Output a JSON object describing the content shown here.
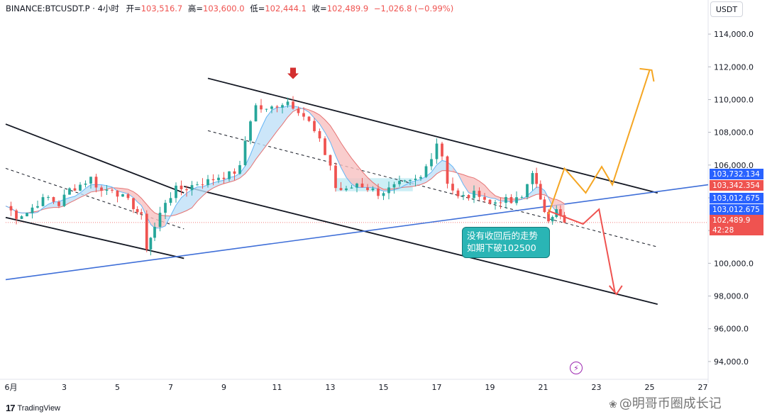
{
  "header": {
    "symbol": "BINANCE:BTCUSDT.P · 4小时",
    "open_label": "开=",
    "open": "103,516.7",
    "high_label": "高=",
    "high": "103,600.0",
    "low_label": "低=",
    "low": "102,444.1",
    "close_label": "收=",
    "close": "102,489.9",
    "change": "−1,026.8 (−0.99%)"
  },
  "currency": "USDT",
  "branding": {
    "logo": "TradingView",
    "watermark": "明哥币圈成长记"
  },
  "annotation": {
    "line1": "没有收回后的走势",
    "line2": "如期下破102500"
  },
  "price_tags": [
    {
      "label": "103,732.134",
      "color": "#2962ff"
    },
    {
      "label": "103,342.354",
      "color": "#ef5350"
    },
    {
      "label": "103,012.675",
      "color": "#2962ff"
    },
    {
      "label": "103,012.675",
      "color": "#2962ff"
    },
    {
      "label": "102,489.9",
      "color": "#ef5350"
    },
    {
      "label": "42:28",
      "color": "#ef5350"
    }
  ],
  "chart_data": {
    "type": "candlestick",
    "title": "BINANCE:BTCUSDT.P · 4小时",
    "y_axis": {
      "unit": "USDT",
      "ticks": [
        94000,
        96000,
        98000,
        100000,
        102000,
        104000,
        106000,
        108000,
        110000,
        112000,
        114000
      ],
      "tick_labels": [
        "94,000.0",
        "96,000.0",
        "98,000.0",
        "100,000.0",
        "102,000.0",
        "104,000.0",
        "106,000.0",
        "108,000.0",
        "110,000.0",
        "112,000.0",
        "114,000.0"
      ],
      "range": [
        93000,
        115000
      ]
    },
    "x_axis": {
      "tick_labels": [
        "6月",
        "3",
        "5",
        "7",
        "9",
        "11",
        "13",
        "15",
        "17",
        "19",
        "21",
        "23",
        "25",
        "27"
      ],
      "tick_days": [
        1,
        3,
        5,
        7,
        9,
        11,
        13,
        15,
        17,
        19,
        21,
        23,
        25,
        27
      ],
      "range_days": [
        0.8,
        27.2
      ]
    },
    "last_price": 102489.9,
    "candles_anchor_closes": [
      [
        0.8,
        103500
      ],
      [
        1.2,
        102900
      ],
      [
        1.6,
        103100
      ],
      [
        2.0,
        103700
      ],
      [
        2.4,
        104000
      ],
      [
        2.8,
        103600
      ],
      [
        3.2,
        104500
      ],
      [
        3.6,
        104800
      ],
      [
        4.0,
        105200
      ],
      [
        4.4,
        104400
      ],
      [
        4.8,
        104600
      ],
      [
        5.2,
        104000
      ],
      [
        5.6,
        103500
      ],
      [
        5.9,
        102800
      ],
      [
        6.1,
        101000
      ],
      [
        6.4,
        102200
      ],
      [
        6.8,
        103800
      ],
      [
        7.2,
        104500
      ],
      [
        7.6,
        104600
      ],
      [
        8.0,
        104900
      ],
      [
        8.4,
        105000
      ],
      [
        8.8,
        105300
      ],
      [
        9.2,
        105400
      ],
      [
        9.6,
        105800
      ],
      [
        9.8,
        107500
      ],
      [
        10.0,
        108800
      ],
      [
        10.2,
        109600
      ],
      [
        10.6,
        109300
      ],
      [
        11.0,
        109700
      ],
      [
        11.4,
        109900
      ],
      [
        11.8,
        109400
      ],
      [
        12.2,
        108600
      ],
      [
        12.6,
        107400
      ],
      [
        13.0,
        106000
      ],
      [
        13.2,
        104600
      ],
      [
        13.6,
        104400
      ],
      [
        14.0,
        104900
      ],
      [
        14.4,
        104600
      ],
      [
        14.8,
        104300
      ],
      [
        15.2,
        104500
      ],
      [
        15.6,
        104800
      ],
      [
        16.0,
        104900
      ],
      [
        16.4,
        105200
      ],
      [
        16.8,
        106600
      ],
      [
        17.0,
        107400
      ],
      [
        17.2,
        106600
      ],
      [
        17.4,
        105000
      ],
      [
        17.8,
        104000
      ],
      [
        18.2,
        104100
      ],
      [
        18.6,
        104300
      ],
      [
        19.0,
        103600
      ],
      [
        19.4,
        103900
      ],
      [
        19.8,
        103700
      ],
      [
        20.2,
        104000
      ],
      [
        20.6,
        105700
      ],
      [
        20.9,
        103700
      ],
      [
        21.2,
        102800
      ],
      [
        21.5,
        103200
      ],
      [
        21.8,
        102490
      ]
    ],
    "channel_lines": [
      {
        "name": "left-channel-upper",
        "points": [
          [
            0.8,
            108500
          ],
          [
            7.5,
            104300
          ]
        ]
      },
      {
        "name": "left-channel-lower",
        "points": [
          [
            0.8,
            102800
          ],
          [
            7.5,
            100300
          ]
        ]
      },
      {
        "name": "main-channel-upper",
        "points": [
          [
            8.4,
            111300
          ],
          [
            25.3,
            104300
          ]
        ]
      },
      {
        "name": "main-channel-mid",
        "points": [
          [
            8.4,
            108100
          ],
          [
            25.3,
            101000
          ]
        ]
      },
      {
        "name": "main-channel-lower",
        "points": [
          [
            7.5,
            104700
          ],
          [
            25.3,
            97500
          ]
        ]
      },
      {
        "name": "blue-trendline",
        "points": [
          [
            0.8,
            99000
          ],
          [
            27.2,
            104800
          ]
        ]
      }
    ],
    "projection_up": [
      [
        21.2,
        103000
      ],
      [
        21.8,
        105800
      ],
      [
        22.6,
        104300
      ],
      [
        23.2,
        105900
      ],
      [
        23.6,
        104800
      ],
      [
        25.0,
        111800
      ]
    ],
    "projection_down": [
      [
        21.2,
        103200
      ],
      [
        22.5,
        102400
      ],
      [
        23.1,
        103300
      ],
      [
        23.7,
        98200
      ]
    ],
    "consolidation_box": {
      "x": [
        13.2,
        16.1
      ],
      "y": [
        104400,
        105200
      ]
    },
    "peak_marker_day": 11.6
  }
}
